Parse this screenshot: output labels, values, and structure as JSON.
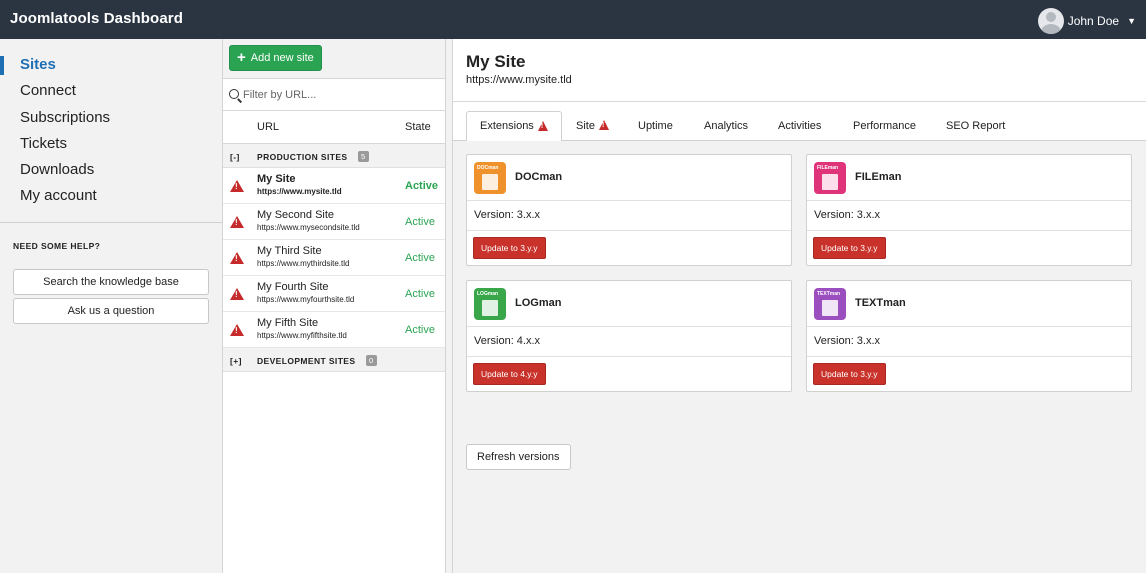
{
  "app": {
    "title": "Joomlatools Dashboard"
  },
  "user": {
    "name": "John Doe"
  },
  "sidebar": {
    "items": [
      {
        "label": "Sites"
      },
      {
        "label": "Connect"
      },
      {
        "label": "Subscriptions"
      },
      {
        "label": "Tickets"
      },
      {
        "label": "Downloads"
      },
      {
        "label": "My account"
      }
    ],
    "help_title": "NEED SOME HELP?",
    "kb_button": "Search the knowledge base",
    "ask_button": "Ask us a question"
  },
  "sites": {
    "add_button": "Add new site",
    "filter_placeholder": "Filter by URL...",
    "col_url": "URL",
    "col_state": "State",
    "production": {
      "toggle": "[-]",
      "label": "PRODUCTION SITES",
      "count": "5"
    },
    "development": {
      "toggle": "[+]",
      "label": "DEVELOPMENT SITES",
      "count": "0"
    },
    "rows": [
      {
        "name": "My Site",
        "url": "https://www.mysite.tld",
        "state": "Active"
      },
      {
        "name": "My Second Site",
        "url": "https://www.mysecondsite.tld",
        "state": "Active"
      },
      {
        "name": "My Third Site",
        "url": "https://www.mythirdsite.tld",
        "state": "Active"
      },
      {
        "name": "My Fourth Site",
        "url": "https://www.myfourthsite.tld",
        "state": "Active"
      },
      {
        "name": "My Fifth Site",
        "url": "https://www.myfifthsite.tld",
        "state": "Active"
      }
    ]
  },
  "main": {
    "title": "My Site",
    "url": "https://www.mysite.tld",
    "tabs": [
      {
        "label": "Extensions"
      },
      {
        "label": "Site"
      },
      {
        "label": "Uptime"
      },
      {
        "label": "Analytics"
      },
      {
        "label": "Activities"
      },
      {
        "label": "Performance"
      },
      {
        "label": "SEO Report"
      }
    ],
    "extensions": [
      {
        "logo_text": "DOCman",
        "name": "DOCman",
        "version": "Version: 3.x.x",
        "update": "Update to 3.y.y",
        "color": "#f0922b"
      },
      {
        "logo_text": "FILEman",
        "name": "FILEman",
        "version": "Version: 3.x.x",
        "update": "Update to 3.y.y",
        "color": "#e0347a"
      },
      {
        "logo_text": "LOGman",
        "name": "LOGman",
        "version": "Version: 4.x.x",
        "update": "Update to 4.y.y",
        "color": "#3aa64a"
      },
      {
        "logo_text": "TEXTman",
        "name": "TEXTman",
        "version": "Version: 3.x.x",
        "update": "Update to 3.y.y",
        "color": "#9b4fbf"
      }
    ],
    "refresh_button": "Refresh versions"
  },
  "colors": {
    "header": "#2b3542",
    "accent": "#1f6fb5",
    "success": "#2aa452",
    "danger": "#c8322a",
    "warning": "#c62a2a"
  }
}
